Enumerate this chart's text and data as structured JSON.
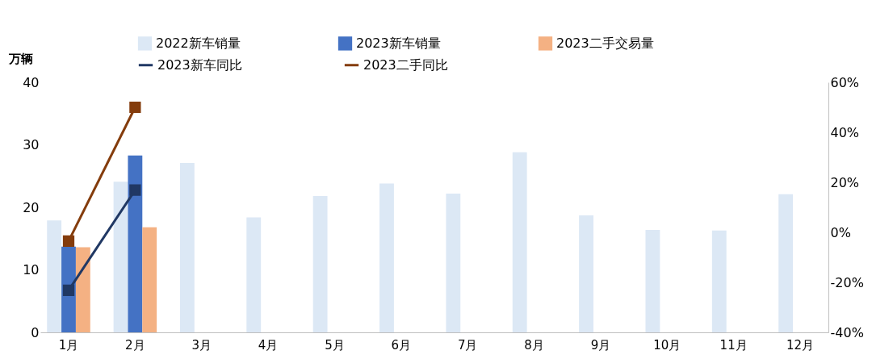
{
  "chart_data": {
    "type": "bar",
    "ylabel": "万辆",
    "categories": [
      "1月",
      "2月",
      "3月",
      "4月",
      "5月",
      "6月",
      "7月",
      "8月",
      "9月",
      "10月",
      "11月",
      "12月"
    ],
    "series": [
      {
        "name": "2022新车销量",
        "color": "#dce8f5",
        "values": [
          17.9,
          24.1,
          27.1,
          18.4,
          21.8,
          23.8,
          22.2,
          28.8,
          18.7,
          16.4,
          16.3,
          22.1
        ]
      },
      {
        "name": "2023新车销量",
        "color": "#4472c4",
        "values": [
          13.7,
          28.3,
          null,
          null,
          null,
          null,
          null,
          null,
          null,
          null,
          null,
          null
        ]
      },
      {
        "name": "2023二手交易量",
        "color": "#f4b183",
        "values": [
          13.6,
          16.8,
          null,
          null,
          null,
          null,
          null,
          null,
          null,
          null,
          null,
          null
        ]
      },
      {
        "name": "2023新车同比",
        "type": "line",
        "axis": "y2",
        "color": "#203864",
        "marker": "square",
        "values": [
          -23.2,
          16.9,
          null,
          null,
          null,
          null,
          null,
          null,
          null,
          null,
          null,
          null
        ]
      },
      {
        "name": "2023二手同比",
        "type": "line",
        "axis": "y2",
        "color": "#843c0c",
        "marker": "square",
        "values": [
          -3.5,
          50,
          null,
          null,
          null,
          null,
          null,
          null,
          null,
          null,
          null,
          null
        ]
      }
    ],
    "ylim": [
      0,
      40
    ],
    "yticks": [
      0,
      10,
      20,
      30,
      40
    ],
    "y2lim": [
      -40,
      60
    ],
    "y2ticks": [
      {
        "value": -40,
        "label": "-40%"
      },
      {
        "value": -20,
        "label": "-20%"
      },
      {
        "value": 0,
        "label": "0%"
      },
      {
        "value": 20,
        "label": "20%"
      },
      {
        "value": 40,
        "label": "40%"
      },
      {
        "value": 60,
        "label": "60%"
      }
    ],
    "grid": false,
    "legend": "top"
  }
}
